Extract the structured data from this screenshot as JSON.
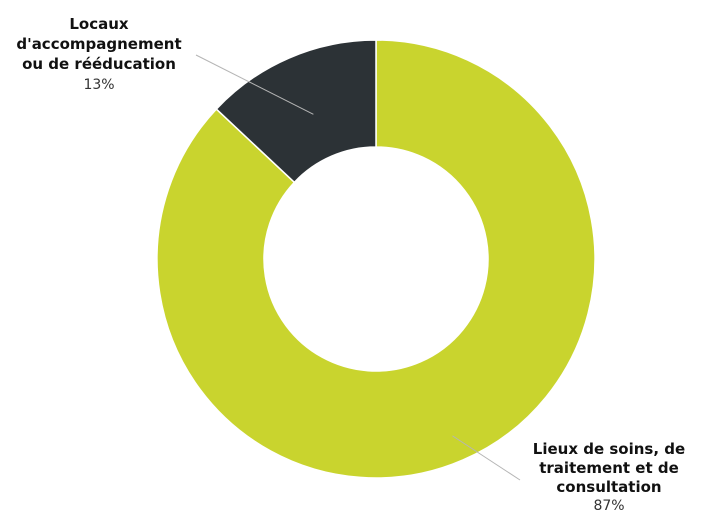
{
  "chart_data": {
    "type": "pie",
    "donut": true,
    "legend": "none",
    "slices": [
      {
        "label": "Lieux de soins, de traitement et de consultation",
        "label_lines": [
          "Lieux de soins, de",
          "traitement et de",
          "consultation"
        ],
        "value": 87,
        "value_label": "87%",
        "color": "#c9d42e"
      },
      {
        "label": "Locaux d'accompagnement ou de rééducation",
        "label_lines": [
          "Locaux",
          "d'accompagnement",
          "ou de rééducation"
        ],
        "value": 13,
        "value_label": "13%",
        "color": "#2c3236"
      }
    ]
  }
}
